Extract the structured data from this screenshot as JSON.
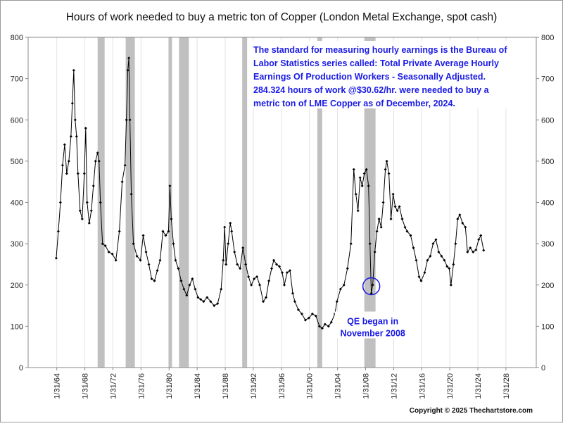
{
  "chart_data": {
    "type": "line",
    "title": "Hours of work needed to buy a metric ton of Copper (London Metal Exchange, spot cash)",
    "annotation_lines": [
      "The standard for measuring hourly earnings is the Bureau of",
      "Labor Statistics series called:  Total Private Average Hourly",
      "Earnings Of Production Workers - Seasonally Adjusted.",
      "284.324 hours of work @$30.62/hr. were needed to buy a",
      "metric ton of LME Copper as of December, 2024."
    ],
    "callout": {
      "lines": [
        "QE began in",
        "November 2008"
      ],
      "x": 2008.9,
      "y": 197
    },
    "credit": "Copyright © 2025 Thechartstore.com",
    "recessions": [
      [
        1969.9,
        1970.9
      ],
      [
        1973.9,
        1975.2
      ],
      [
        1980.0,
        1980.5
      ],
      [
        1981.5,
        1982.9
      ],
      [
        1990.5,
        1991.2
      ],
      [
        2001.2,
        2001.9
      ],
      [
        2007.9,
        2009.5
      ]
    ],
    "recession_color": "#c0c0c0",
    "grid": "x",
    "xlim": [
      1960,
      2032.4
    ],
    "ylim": [
      0,
      800
    ],
    "y2lim": [
      0,
      800
    ],
    "yticks": [
      0,
      100,
      200,
      300,
      400,
      500,
      600,
      700,
      800
    ],
    "y2ticks": [
      0,
      100,
      200,
      300,
      400,
      500,
      600,
      700,
      800
    ],
    "xticks": [
      {
        "value": 1964.08,
        "label": "1/31/64"
      },
      {
        "value": 1968.08,
        "label": "1/31/68"
      },
      {
        "value": 1972.08,
        "label": "1/31/72"
      },
      {
        "value": 1976.08,
        "label": "1/31/76"
      },
      {
        "value": 1980.08,
        "label": "1/31/80"
      },
      {
        "value": 1984.08,
        "label": "1/31/84"
      },
      {
        "value": 1988.08,
        "label": "1/31/88"
      },
      {
        "value": 1992.08,
        "label": "1/31/92"
      },
      {
        "value": 1996.08,
        "label": "1/31/96"
      },
      {
        "value": 2000.08,
        "label": "1/31/00"
      },
      {
        "value": 2004.08,
        "label": "1/31/04"
      },
      {
        "value": 2008.08,
        "label": "1/31/08"
      },
      {
        "value": 2012.08,
        "label": "1/31/12"
      },
      {
        "value": 2016.08,
        "label": "1/31/16"
      },
      {
        "value": 2020.08,
        "label": "1/31/20"
      },
      {
        "value": 2024.08,
        "label": "1/31/24"
      },
      {
        "value": 2028.08,
        "label": "1/31/28"
      }
    ],
    "x": [
      1964.0,
      1964.3,
      1964.6,
      1964.9,
      1965.2,
      1965.5,
      1965.8,
      1966.1,
      1966.3,
      1966.5,
      1966.7,
      1966.9,
      1967.1,
      1967.4,
      1967.7,
      1968.0,
      1968.2,
      1968.4,
      1968.7,
      1969.0,
      1969.3,
      1969.6,
      1969.9,
      1970.1,
      1970.3,
      1970.6,
      1971.0,
      1971.5,
      1972.0,
      1972.5,
      1973.0,
      1973.4,
      1973.8,
      1974.0,
      1974.2,
      1974.35,
      1974.5,
      1974.7,
      1975.0,
      1975.5,
      1976.0,
      1976.4,
      1976.8,
      1977.2,
      1977.6,
      1978.0,
      1978.4,
      1978.8,
      1979.2,
      1979.6,
      1980.0,
      1980.2,
      1980.4,
      1980.7,
      1981.0,
      1981.4,
      1981.8,
      1982.2,
      1982.6,
      1983.0,
      1983.4,
      1983.8,
      1984.2,
      1984.6,
      1985.0,
      1985.5,
      1986.0,
      1986.5,
      1987.0,
      1987.5,
      1987.8,
      1988.0,
      1988.2,
      1988.5,
      1988.8,
      1989.0,
      1989.4,
      1989.8,
      1990.2,
      1990.6,
      1991.0,
      1991.4,
      1991.8,
      1992.2,
      1992.6,
      1993.0,
      1993.5,
      1993.9,
      1994.3,
      1994.7,
      1995.0,
      1995.4,
      1995.8,
      1996.2,
      1996.5,
      1996.9,
      1997.3,
      1997.7,
      1998.0,
      1998.5,
      1999.0,
      1999.5,
      2000.0,
      2000.5,
      2001.0,
      2001.5,
      2001.9,
      2002.3,
      2002.8,
      2003.2,
      2003.7,
      2004.0,
      2004.5,
      2005.0,
      2005.5,
      2006.0,
      2006.4,
      2006.7,
      2007.0,
      2007.3,
      2007.6,
      2007.9,
      2008.2,
      2008.5,
      2008.7,
      2008.9,
      2009.1,
      2009.4,
      2009.7,
      2010.0,
      2010.3,
      2010.6,
      2010.9,
      2011.1,
      2011.4,
      2011.7,
      2012.0,
      2012.3,
      2012.6,
      2012.9,
      2013.3,
      2013.7,
      2014.0,
      2014.5,
      2014.9,
      2015.3,
      2015.7,
      2016.0,
      2016.5,
      2016.9,
      2017.3,
      2017.7,
      2018.1,
      2018.5,
      2018.9,
      2019.3,
      2019.7,
      2020.0,
      2020.25,
      2020.6,
      2020.9,
      2021.2,
      2021.5,
      2021.9,
      2022.3,
      2022.6,
      2023.0,
      2023.4,
      2023.8,
      2024.2,
      2024.5,
      2024.9
    ],
    "series": [
      {
        "color": "#000000",
        "values": [
          265,
          330,
          400,
          490,
          540,
          470,
          500,
          560,
          640,
          720,
          600,
          560,
          470,
          380,
          360,
          470,
          580,
          400,
          350,
          380,
          440,
          500,
          520,
          500,
          400,
          300,
          295,
          280,
          275,
          260,
          330,
          450,
          490,
          600,
          720,
          750,
          600,
          420,
          300,
          270,
          260,
          320,
          280,
          250,
          215,
          210,
          235,
          260,
          330,
          320,
          330,
          440,
          360,
          300,
          260,
          240,
          210,
          190,
          175,
          200,
          215,
          190,
          170,
          165,
          160,
          170,
          160,
          150,
          155,
          190,
          260,
          340,
          250,
          300,
          350,
          330,
          280,
          250,
          240,
          290,
          250,
          220,
          200,
          215,
          220,
          200,
          160,
          170,
          210,
          240,
          260,
          250,
          245,
          230,
          200,
          230,
          235,
          180,
          160,
          140,
          130,
          115,
          120,
          130,
          125,
          100,
          95,
          105,
          100,
          110,
          130,
          160,
          190,
          200,
          240,
          300,
          480,
          420,
          380,
          460,
          440,
          470,
          480,
          440,
          300,
          180,
          200,
          280,
          330,
          360,
          340,
          400,
          480,
          500,
          470,
          360,
          420,
          390,
          380,
          390,
          360,
          340,
          330,
          320,
          290,
          260,
          220,
          210,
          230,
          260,
          270,
          300,
          310,
          280,
          270,
          260,
          245,
          240,
          200,
          250,
          300,
          360,
          370,
          350,
          340,
          280,
          290,
          280,
          285,
          310,
          320,
          284
        ]
      }
    ]
  }
}
